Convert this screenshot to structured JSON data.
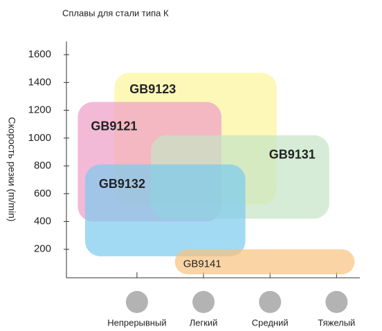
{
  "chart_data": {
    "type": "range",
    "title": "Сплавы для стали типа К",
    "y_label": "Скорость резки (m/min)",
    "categories": [
      "Непрерывный",
      "Легкий",
      "Средний",
      "Тяжелый"
    ],
    "xlim": [
      -1.06,
      3.35
    ],
    "ylim": [
      0,
      1700
    ],
    "yticks": [
      200,
      400,
      600,
      800,
      1000,
      1200,
      1400,
      1600
    ],
    "series": [
      {
        "name": "GB9123",
        "color": "#fdf59a",
        "x": [
          -0.34,
          2.1
        ],
        "y": [
          520,
          1470
        ]
      },
      {
        "name": "GB9121",
        "color": "#ee9cc6",
        "x": [
          -0.89,
          1.27
        ],
        "y": [
          400,
          1260
        ]
      },
      {
        "name": "GB9131",
        "color": "#c4e4c4",
        "x": [
          0.21,
          2.89
        ],
        "y": [
          420,
          1020
        ]
      },
      {
        "name": "GB9132",
        "color": "#7ccbee",
        "x": [
          -0.78,
          1.63
        ],
        "y": [
          150,
          810
        ]
      },
      {
        "name": "GB9141",
        "color": "#f8c27e",
        "x": [
          0.57,
          3.27
        ],
        "y": [
          20,
          200
        ]
      }
    ]
  }
}
